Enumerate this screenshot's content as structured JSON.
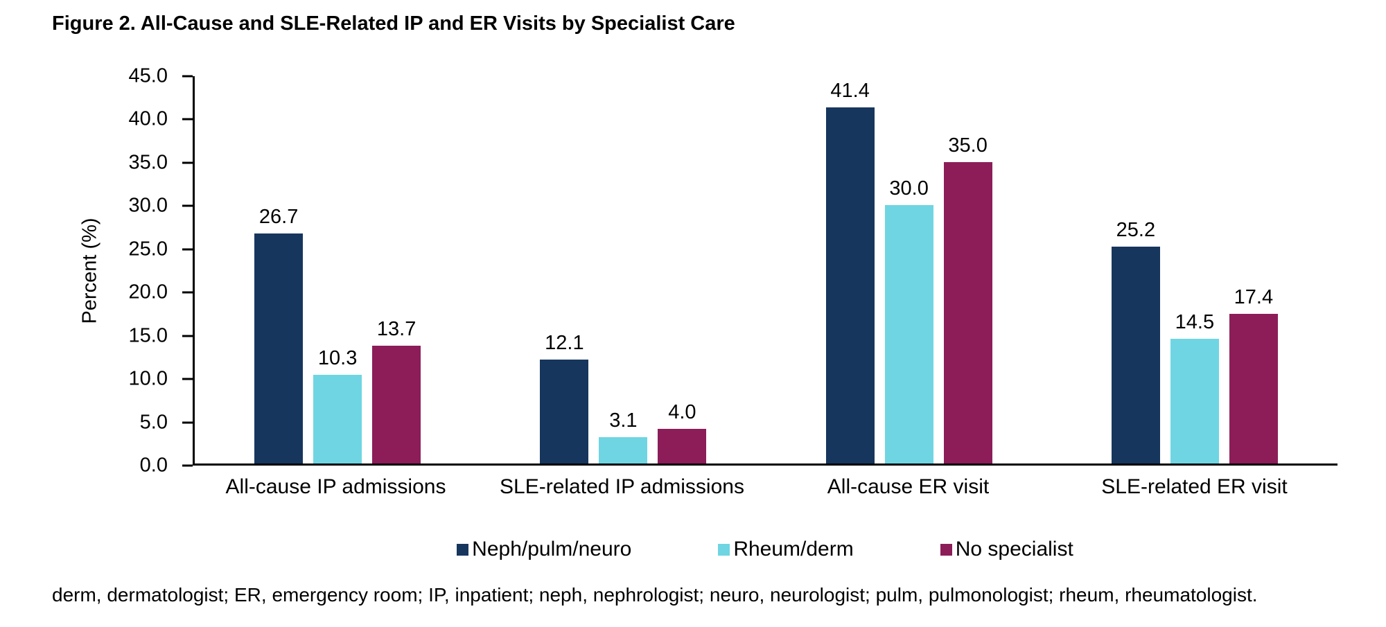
{
  "title": "Figure 2. All-Cause and SLE-Related IP and ER Visits by Specialist Care",
  "footnote": "derm, dermatologist; ER, emergency room; IP, inpatient; neph, nephrologist; neuro, neurologist; pulm, pulmonologist; rheum, rheumatologist.",
  "chart_data": {
    "type": "bar",
    "title": "Figure 2. All-Cause and SLE-Related IP and ER Visits by Specialist Care",
    "xlabel": "",
    "ylabel": "Percent (%)",
    "ylim": [
      0,
      45
    ],
    "ytick_step": 5,
    "yticks": [
      "0.0",
      "5.0",
      "10.0",
      "15.0",
      "20.0",
      "25.0",
      "30.0",
      "35.0",
      "40.0",
      "45.0"
    ],
    "grid": false,
    "legend_position": "bottom",
    "value_label_decimals": 1,
    "categories": [
      "All-cause IP admissions",
      "SLE-related IP admissions",
      "All-cause ER visit",
      "SLE-related ER visit"
    ],
    "series": [
      {
        "name": "Neph/pulm/neuro",
        "color": "#17365D",
        "values": [
          26.7,
          12.1,
          41.4,
          25.2
        ]
      },
      {
        "name": "Rheum/derm",
        "color": "#6FD5E2",
        "values": [
          10.3,
          3.1,
          30.0,
          14.5
        ]
      },
      {
        "name": "No specialist",
        "color": "#8C1D59",
        "values": [
          13.7,
          4.0,
          35.0,
          17.4
        ]
      }
    ]
  }
}
